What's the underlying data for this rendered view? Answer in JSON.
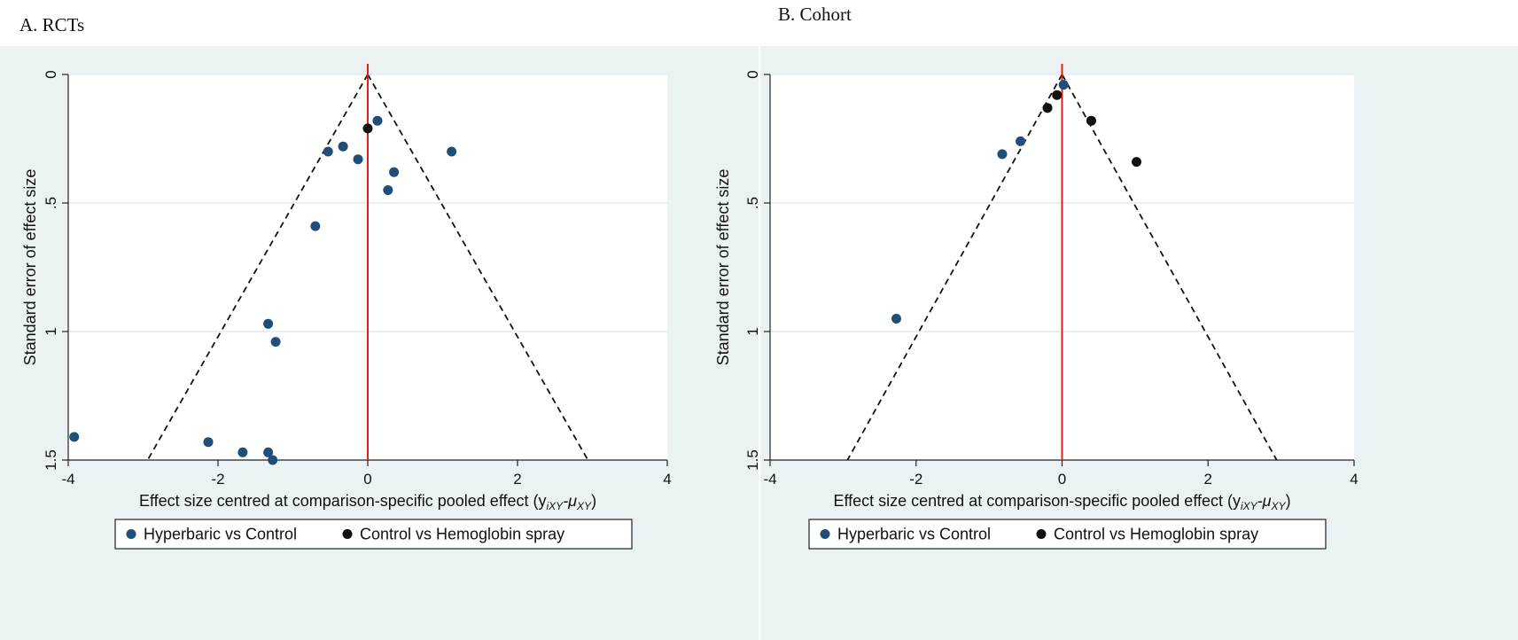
{
  "panels": [
    {
      "title": "A. RCTs",
      "chart_data": {
        "type": "scatter",
        "title": "A. RCTs",
        "xlabel": "Effect size centred at comparison-specific pooled effect (y",
        "xlabel_sub1": "iXY",
        "xlabel_mid": "-μ",
        "xlabel_sub2": "XY",
        "xlabel_end": ")",
        "ylabel": "Standard error of effect size",
        "xlim": [
          -4,
          4
        ],
        "ylim": [
          0,
          1.5
        ],
        "y_reversed": true,
        "xticks": [
          -4,
          -2,
          0,
          2,
          4
        ],
        "xtick_labels": [
          "-4",
          "-2",
          "0",
          "2",
          "4"
        ],
        "yticks": [
          0,
          0.5,
          1,
          1.5
        ],
        "ytick_labels": [
          "0",
          ".5",
          "1",
          "1.5"
        ],
        "grid": true,
        "legend_position": "bottom",
        "reference_line_x": 0,
        "funnel_apex": [
          0,
          0
        ],
        "funnel_base": [
          [
            -2.94,
            1.5
          ],
          [
            2.94,
            1.5
          ]
        ],
        "series": [
          {
            "name": "Hyperbaric vs Control",
            "color": "#1f4e79",
            "points": [
              [
                0.13,
                0.18
              ],
              [
                -0.33,
                0.28
              ],
              [
                -0.53,
                0.3
              ],
              [
                -0.13,
                0.33
              ],
              [
                1.12,
                0.3
              ],
              [
                0.35,
                0.38
              ],
              [
                0.27,
                0.45
              ],
              [
                -0.7,
                0.59
              ],
              [
                -1.33,
                0.97
              ],
              [
                -1.23,
                1.04
              ],
              [
                -3.92,
                1.41
              ],
              [
                -2.13,
                1.43
              ],
              [
                -1.67,
                1.47
              ],
              [
                -1.33,
                1.47
              ],
              [
                -1.27,
                1.5
              ]
            ]
          },
          {
            "name": "Control vs Hemoglobin spray",
            "color": "#111111",
            "points": [
              [
                0.0,
                0.21
              ]
            ]
          }
        ]
      }
    },
    {
      "title": "B. Cohort",
      "chart_data": {
        "type": "scatter",
        "title": "B. Cohort",
        "xlabel": "Effect size centred at comparison-specific pooled effect (y",
        "xlabel_sub1": "iXY",
        "xlabel_mid": "-μ",
        "xlabel_sub2": "XY",
        "xlabel_end": ")",
        "ylabel": "Standard error of effect size",
        "xlim": [
          -4,
          4
        ],
        "ylim": [
          0,
          1.5
        ],
        "y_reversed": true,
        "xticks": [
          -4,
          -2,
          0,
          2,
          4
        ],
        "xtick_labels": [
          "-4",
          "-2",
          "0",
          "2",
          "4"
        ],
        "yticks": [
          0,
          0.5,
          1,
          1.5
        ],
        "ytick_labels": [
          "0",
          ".5",
          "1",
          "1.5"
        ],
        "grid": true,
        "legend_position": "bottom",
        "reference_line_x": 0,
        "funnel_apex": [
          0,
          0
        ],
        "funnel_base": [
          [
            -2.94,
            1.5
          ],
          [
            2.94,
            1.5
          ]
        ],
        "series": [
          {
            "name": "Hyperbaric vs Control",
            "color": "#1f4e79",
            "points": [
              [
                0.02,
                0.04
              ],
              [
                -0.57,
                0.26
              ],
              [
                -0.82,
                0.31
              ],
              [
                -2.27,
                0.95
              ]
            ]
          },
          {
            "name": "Control vs Hemoglobin spray",
            "color": "#111111",
            "points": [
              [
                -0.07,
                0.08
              ],
              [
                -0.2,
                0.13
              ],
              [
                0.4,
                0.18
              ],
              [
                1.02,
                0.34
              ]
            ]
          }
        ]
      }
    }
  ]
}
